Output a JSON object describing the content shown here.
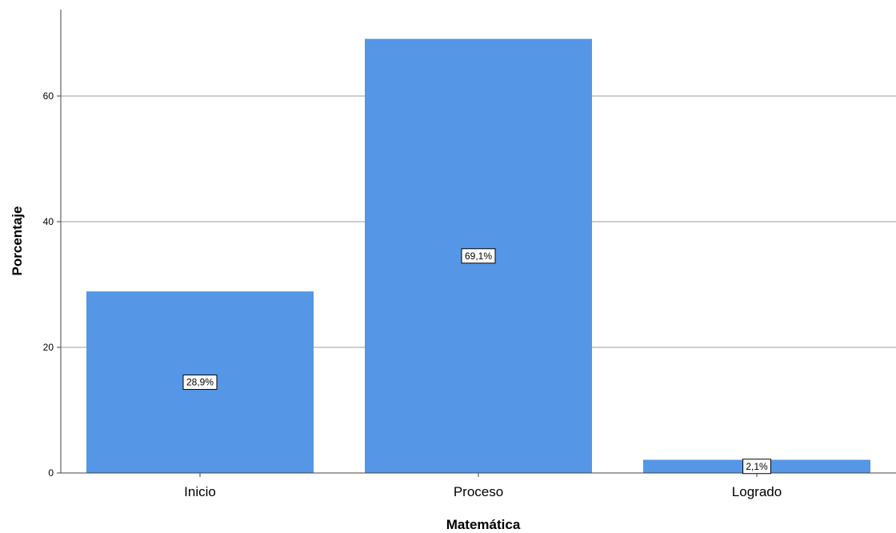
{
  "chart_data": {
    "type": "bar",
    "title": "",
    "xlabel": "Matemática",
    "ylabel": "Porcentaje",
    "categories": [
      "Inicio",
      "Proceso",
      "Logrado"
    ],
    "values": [
      28.9,
      69.1,
      2.1
    ],
    "data_labels": [
      "28,9%",
      "69,1%",
      "2,1%"
    ],
    "yticks": [
      0,
      20,
      40,
      60
    ],
    "ytick_labels": [
      "0",
      "20",
      "40",
      "60"
    ],
    "ylim": [
      0,
      74
    ],
    "grid": true,
    "bar_color": "#5596e6"
  }
}
